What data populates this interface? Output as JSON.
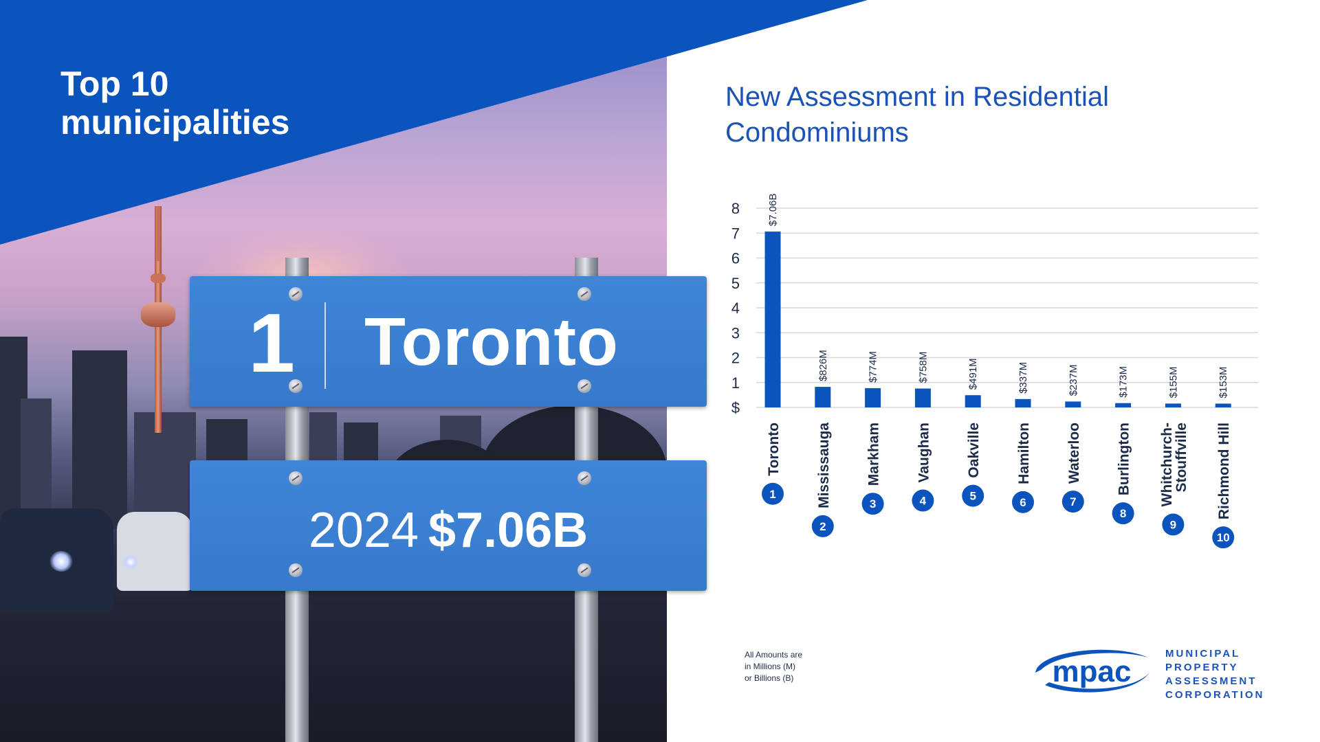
{
  "headline": {
    "line1": "Top 10",
    "line2": "municipalities"
  },
  "sign": {
    "rank": "1",
    "name": "Toronto",
    "year": "2024",
    "amount": "$7.06B"
  },
  "colors": {
    "brand_blue": "#0b54bd",
    "bar_blue": "#0b54bd",
    "sign_blue": "#3a7fd2",
    "grid": "#d7d9de"
  },
  "chart_data": {
    "type": "bar",
    "title": "New Assessment in Residential Condominiums",
    "title_lines": [
      "New Assessment in Residential",
      "Condominiums"
    ],
    "unit_label": "$",
    "ytick_labels": [
      "$",
      "1",
      "2",
      "3",
      "4",
      "5",
      "6",
      "7",
      "8"
    ],
    "yticks": [
      0,
      1,
      2,
      3,
      4,
      5,
      6,
      7,
      8
    ],
    "ylim": [
      0,
      8
    ],
    "grid": true,
    "categories": [
      "Toronto",
      "Mississauga",
      "Markham",
      "Vaughan",
      "Oakville",
      "Hamilton",
      "Waterloo",
      "Burlington",
      "Whitchurch-Stouffville",
      "Richmond Hill"
    ],
    "category_lines": [
      [
        "Toronto"
      ],
      [
        "Mississauga"
      ],
      [
        "Markham"
      ],
      [
        "Vaughan"
      ],
      [
        "Oakville"
      ],
      [
        "Hamilton"
      ],
      [
        "Waterloo"
      ],
      [
        "Burlington"
      ],
      [
        "Whitchurch-",
        "Stouffville"
      ],
      [
        "Richmond Hill"
      ]
    ],
    "ranks": [
      "1",
      "2",
      "3",
      "4",
      "5",
      "6",
      "7",
      "8",
      "9",
      "10"
    ],
    "values": [
      7.06,
      0.826,
      0.774,
      0.758,
      0.491,
      0.337,
      0.237,
      0.173,
      0.155,
      0.153
    ],
    "value_labels": [
      "$7.06B",
      "$826M",
      "$774M",
      "$758M",
      "$491M",
      "$337M",
      "$237M",
      "$173M",
      "$155M",
      "$153M"
    ]
  },
  "footnote": {
    "line1": "All Amounts are",
    "line2": "in Millions (M)",
    "line3": "or Billions (B)"
  },
  "logo": {
    "wordmark": "mpac",
    "line1": "MUNICIPAL",
    "line2": "PROPERTY",
    "line3": "ASSESSMENT",
    "line4": "CORPORATION"
  }
}
